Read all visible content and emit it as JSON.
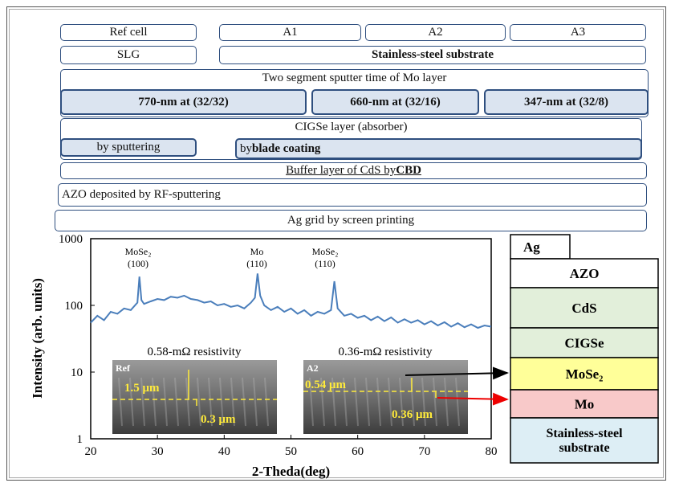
{
  "flow": {
    "row1": [
      "Ref cell",
      "A1",
      "A2",
      "A3"
    ],
    "row2": [
      "SLG",
      "Stainless-steel substrate"
    ],
    "mo": {
      "title": "Two segment sputter time of Mo layer",
      "segments": [
        "770-nm at (32/32)",
        "660-nm at (32/16)",
        "347-nm at (32/8)"
      ]
    },
    "cigse": {
      "title": "CIGSe layer (absorber)",
      "left": "by sputtering",
      "right": "by",
      "right_bold": "blade coating"
    },
    "buffer": {
      "text": "Buffer layer of CdS by",
      "bold": "CBD"
    },
    "azo": "AZO deposited by RF-sputtering",
    "ag": "Ag grid by screen printing"
  },
  "chart_data": {
    "type": "line",
    "xlabel": "2-Theda(deg)",
    "ylabel": "Intensity (arb. units)",
    "log_y": true,
    "color": "#4a7ebb",
    "x": [
      20,
      21,
      22,
      23,
      24,
      25,
      26,
      27,
      27.3,
      27.6,
      28,
      29,
      30,
      31,
      32,
      33,
      34,
      35,
      36,
      37,
      38,
      39,
      40,
      41,
      42,
      43,
      44,
      44.6,
      45,
      45.4,
      46,
      47,
      48,
      49,
      50,
      51,
      52,
      53,
      54,
      55,
      56,
      56.5,
      57,
      58,
      59,
      60,
      61,
      62,
      63,
      64,
      65,
      66,
      67,
      68,
      69,
      70,
      71,
      72,
      73,
      74,
      75,
      76,
      77,
      78,
      79,
      80
    ],
    "values": [
      55,
      70,
      60,
      80,
      75,
      90,
      85,
      110,
      270,
      120,
      105,
      115,
      125,
      120,
      135,
      130,
      140,
      125,
      120,
      110,
      115,
      100,
      105,
      95,
      100,
      90,
      110,
      130,
      300,
      140,
      100,
      85,
      95,
      80,
      90,
      75,
      85,
      70,
      80,
      75,
      85,
      230,
      90,
      70,
      75,
      65,
      70,
      60,
      68,
      58,
      66,
      55,
      62,
      55,
      60,
      52,
      58,
      50,
      56,
      48,
      54,
      47,
      52,
      46,
      50,
      48
    ],
    "xlim": [
      20,
      80
    ],
    "xticks": [
      20,
      30,
      40,
      50,
      60,
      70,
      80
    ],
    "ylim": [
      1,
      1000
    ],
    "yticks": [
      1,
      10,
      100,
      1000
    ],
    "peaks": [
      {
        "label": "MoSe₂",
        "plane": "(100)"
      },
      {
        "label": "Mo",
        "plane": "(110)"
      },
      {
        "label": "MoSe₂",
        "plane": "(110)"
      }
    ],
    "insets": [
      {
        "title": "0.58-mΩ resistivity",
        "tag": "Ref",
        "labels": [
          "1.5 μm",
          "0.3 μm"
        ]
      },
      {
        "title": "0.36-mΩ resistivity",
        "tag": "A2",
        "labels": [
          "0.54 μm",
          "0.36 μm"
        ]
      }
    ]
  },
  "stack": {
    "tab": "Ag",
    "layers": [
      "AZO",
      "CdS",
      "CIGSe",
      "MoSe₂",
      "Mo",
      "Stainless-steel substrate"
    ]
  }
}
